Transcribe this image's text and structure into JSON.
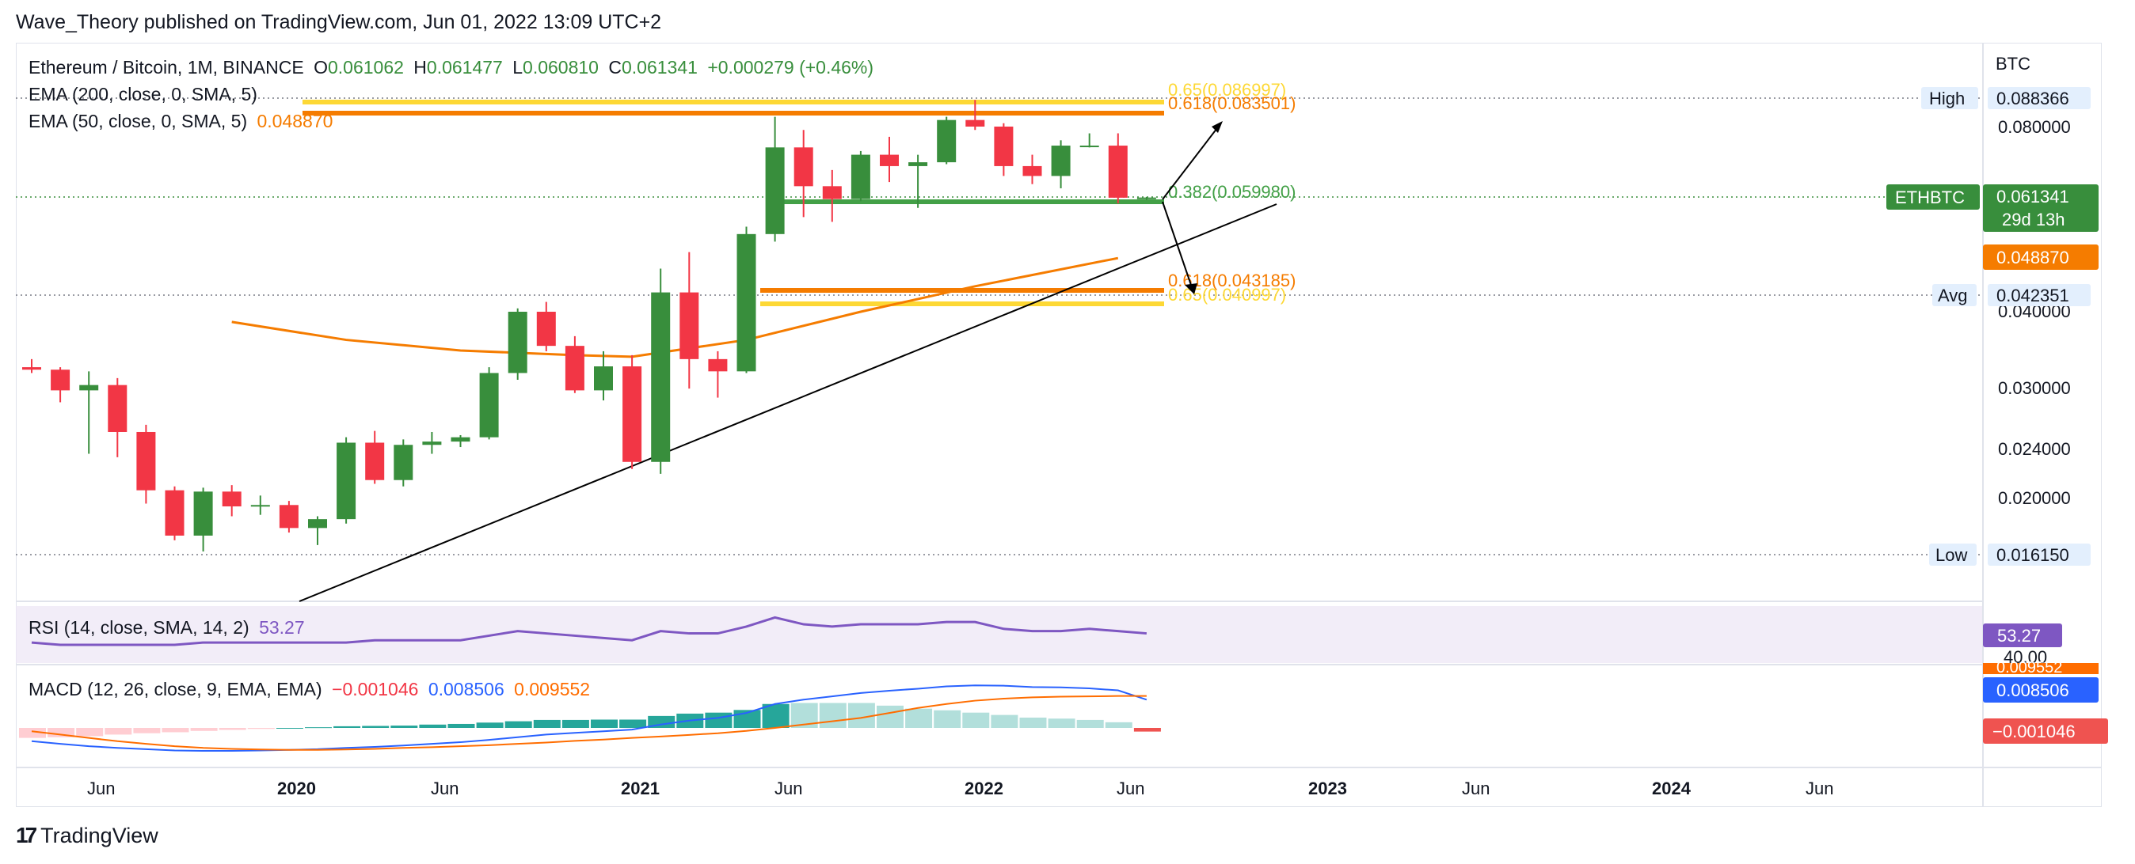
{
  "header": {
    "published": "Wave_Theory published on TradingView.com, Jun 01, 2022 13:09 UTC+2"
  },
  "legend": {
    "symbol": "Ethereum / Bitcoin, 1M, BINANCE",
    "o_label": "O",
    "o": "0.061062",
    "h_label": "H",
    "h": "0.061477",
    "l_label": "L",
    "l": "0.060810",
    "c_label": "C",
    "c": "0.061341",
    "change": "+0.000279 (+0.46%)",
    "ema200": "EMA (200, close, 0, SMA, 5)",
    "ema50": "EMA (50, close, 0, SMA, 5)",
    "ema50_value": "0.048870"
  },
  "rsi": {
    "label": "RSI (14, close, SMA, 14, 2)",
    "value": "53.27",
    "level": "40.00"
  },
  "macd": {
    "label": "MACD (12, 26, close, 9, EMA, EMA)",
    "hist": "−0.001046",
    "macd": "0.008506",
    "signal": "0.009552",
    "signal_hidden": "0.009552"
  },
  "price_axis": {
    "unit": "BTC",
    "ticks": [
      "0.080000",
      "0.040000",
      "0.030000",
      "0.024000",
      "0.020000"
    ],
    "high_label": "High",
    "high_value": "0.088366",
    "avg_label": "Avg",
    "avg_value": "0.042351",
    "low_label": "Low",
    "low_value": "0.016150",
    "symbol_tag": "ETHBTC",
    "last_price": "0.061341",
    "countdown": "29d 13h",
    "ema_tag": "0.048870"
  },
  "time_axis": [
    "Jun",
    "2020",
    "Jun",
    "2021",
    "Jun",
    "2022",
    "Jun",
    "2023",
    "Jun",
    "2024",
    "Jun"
  ],
  "fib_labels": {
    "f065_top": "0.65(0.086997)",
    "f0618_top": "0.618(0.083501)",
    "f0382": "0.382(0.059980)",
    "f0618_bot": "0.618(0.043185)",
    "f065_bot": "0.65(0.040997)"
  },
  "footer": {
    "brand": "TradingView"
  },
  "colors": {
    "up": "#388e3c",
    "down": "#f23645",
    "ema": "#f57c00",
    "fib_yellow": "#fdd835",
    "fib_orange": "#f57c00",
    "fib_green": "#43a047",
    "rsi": "#7e57c2",
    "macd": "#2962ff",
    "signal": "#ff6d00",
    "hist_pos": "#26a69a",
    "hist_neg": "#ef5350"
  },
  "chart_data": {
    "type": "candlestick",
    "timeframe": "1M",
    "candles": [
      {
        "date": "2019-04",
        "o": 0.0325,
        "h": 0.0335,
        "l": 0.0318,
        "c": 0.0322
      },
      {
        "date": "2019-05",
        "o": 0.0322,
        "h": 0.0325,
        "l": 0.0285,
        "c": 0.0298
      },
      {
        "date": "2019-06",
        "o": 0.0298,
        "h": 0.032,
        "l": 0.0235,
        "c": 0.0304
      },
      {
        "date": "2019-07",
        "o": 0.0304,
        "h": 0.0312,
        "l": 0.0232,
        "c": 0.0255
      },
      {
        "date": "2019-08",
        "o": 0.0255,
        "h": 0.0262,
        "l": 0.0195,
        "c": 0.0205
      },
      {
        "date": "2019-09",
        "o": 0.0205,
        "h": 0.0208,
        "l": 0.017,
        "c": 0.0173
      },
      {
        "date": "2019-10",
        "o": 0.0173,
        "h": 0.0207,
        "l": 0.0163,
        "c": 0.0204
      },
      {
        "date": "2019-11",
        "o": 0.0204,
        "h": 0.0209,
        "l": 0.0186,
        "c": 0.0193
      },
      {
        "date": "2019-12",
        "o": 0.0193,
        "h": 0.0201,
        "l": 0.0187,
        "c": 0.0194
      },
      {
        "date": "2020-01",
        "o": 0.0194,
        "h": 0.0197,
        "l": 0.0175,
        "c": 0.0178
      },
      {
        "date": "2020-02",
        "o": 0.0178,
        "h": 0.0186,
        "l": 0.0167,
        "c": 0.0184
      },
      {
        "date": "2020-03",
        "o": 0.0184,
        "h": 0.025,
        "l": 0.0181,
        "c": 0.0245
      },
      {
        "date": "2020-04",
        "o": 0.0245,
        "h": 0.0256,
        "l": 0.021,
        "c": 0.0213
      },
      {
        "date": "2020-05",
        "o": 0.0213,
        "h": 0.0248,
        "l": 0.0208,
        "c": 0.0243
      },
      {
        "date": "2020-06",
        "o": 0.0243,
        "h": 0.0255,
        "l": 0.0235,
        "c": 0.0246
      },
      {
        "date": "2020-07",
        "o": 0.0246,
        "h": 0.0252,
        "l": 0.0241,
        "c": 0.025
      },
      {
        "date": "2020-08",
        "o": 0.025,
        "h": 0.0325,
        "l": 0.0248,
        "c": 0.0318
      },
      {
        "date": "2020-09",
        "o": 0.0318,
        "h": 0.0405,
        "l": 0.031,
        "c": 0.04
      },
      {
        "date": "2020-10",
        "o": 0.04,
        "h": 0.0415,
        "l": 0.0345,
        "c": 0.0352
      },
      {
        "date": "2020-11",
        "o": 0.0352,
        "h": 0.0365,
        "l": 0.0295,
        "c": 0.0298
      },
      {
        "date": "2020-12",
        "o": 0.0298,
        "h": 0.0345,
        "l": 0.0287,
        "c": 0.0326
      },
      {
        "date": "2021-01",
        "o": 0.0326,
        "h": 0.034,
        "l": 0.0222,
        "c": 0.0228
      },
      {
        "date": "2021-02",
        "o": 0.0228,
        "h": 0.047,
        "l": 0.0218,
        "c": 0.043
      },
      {
        "date": "2021-03",
        "o": 0.043,
        "h": 0.05,
        "l": 0.03,
        "c": 0.0335
      },
      {
        "date": "2021-04",
        "o": 0.0335,
        "h": 0.0345,
        "l": 0.029,
        "c": 0.032
      },
      {
        "date": "2021-05",
        "o": 0.032,
        "h": 0.055,
        "l": 0.0318,
        "c": 0.0535
      },
      {
        "date": "2021-06",
        "o": 0.0535,
        "h": 0.083,
        "l": 0.052,
        "c": 0.074
      },
      {
        "date": "2021-07",
        "o": 0.074,
        "h": 0.079,
        "l": 0.057,
        "c": 0.064
      },
      {
        "date": "2021-08",
        "o": 0.064,
        "h": 0.068,
        "l": 0.056,
        "c": 0.061
      },
      {
        "date": "2021-09",
        "o": 0.061,
        "h": 0.073,
        "l": 0.0605,
        "c": 0.072
      },
      {
        "date": "2021-10",
        "o": 0.072,
        "h": 0.077,
        "l": 0.065,
        "c": 0.069
      },
      {
        "date": "2021-11",
        "o": 0.069,
        "h": 0.072,
        "l": 0.059,
        "c": 0.07
      },
      {
        "date": "2021-12",
        "o": 0.07,
        "h": 0.083,
        "l": 0.0695,
        "c": 0.082
      },
      {
        "date": "2022-01",
        "o": 0.082,
        "h": 0.0884,
        "l": 0.079,
        "c": 0.08
      },
      {
        "date": "2022-02",
        "o": 0.08,
        "h": 0.081,
        "l": 0.0665,
        "c": 0.069
      },
      {
        "date": "2022-03",
        "o": 0.069,
        "h": 0.072,
        "l": 0.0645,
        "c": 0.0665
      },
      {
        "date": "2022-04",
        "o": 0.0665,
        "h": 0.076,
        "l": 0.0635,
        "c": 0.0745
      },
      {
        "date": "2022-05",
        "o": 0.0745,
        "h": 0.078,
        "l": 0.074,
        "c": 0.0745
      },
      {
        "date": "2022-06",
        "o": 0.0745,
        "h": 0.078,
        "l": 0.06,
        "c": 0.0613
      },
      {
        "date": "2022-06-cur",
        "o": 0.061062,
        "h": 0.061477,
        "l": 0.06081,
        "c": 0.061341
      }
    ],
    "ema50": [
      {
        "date": "2019-11",
        "v": 0.0385
      },
      {
        "date": "2020-03",
        "v": 0.036
      },
      {
        "date": "2020-07",
        "v": 0.0346
      },
      {
        "date": "2020-11",
        "v": 0.034
      },
      {
        "date": "2021-01",
        "v": 0.0338
      },
      {
        "date": "2021-05",
        "v": 0.036
      },
      {
        "date": "2021-09",
        "v": 0.04
      },
      {
        "date": "2022-01",
        "v": 0.044
      },
      {
        "date": "2022-06",
        "v": 0.0489
      }
    ],
    "fib_levels": [
      {
        "ratio": "0.65",
        "value": 0.086997,
        "color": "yellow"
      },
      {
        "ratio": "0.618",
        "value": 0.083501,
        "color": "orange"
      },
      {
        "ratio": "0.382",
        "value": 0.05998,
        "color": "green"
      },
      {
        "ratio": "0.618",
        "value": 0.043185,
        "color": "orange"
      },
      {
        "ratio": "0.65",
        "value": 0.040997,
        "color": "yellow"
      }
    ],
    "high": 0.088366,
    "avg": 0.042351,
    "low": 0.01615,
    "y_scale": "log",
    "rsi_series": [
      49,
      48,
      48,
      48,
      48,
      48,
      49,
      49,
      49,
      49,
      49,
      49,
      50,
      50,
      50,
      50,
      52,
      54,
      53,
      52,
      51,
      50,
      54,
      53,
      53,
      56,
      60,
      57,
      56,
      57,
      57,
      57,
      58,
      58,
      55,
      54,
      54,
      55,
      54,
      53
    ],
    "macd_series": [
      -0.004,
      -0.0048,
      -0.0055,
      -0.006,
      -0.0064,
      -0.0068,
      -0.0069,
      -0.0069,
      -0.0068,
      -0.0066,
      -0.0064,
      -0.006,
      -0.0057,
      -0.0053,
      -0.0048,
      -0.0043,
      -0.0036,
      -0.0028,
      -0.002,
      -0.0015,
      -0.001,
      -0.0005,
      0.001,
      0.0022,
      0.003,
      0.0045,
      0.0072,
      0.0085,
      0.0095,
      0.0105,
      0.0112,
      0.0118,
      0.0125,
      0.0128,
      0.0127,
      0.0123,
      0.0122,
      0.0119,
      0.0113,
      0.0085
    ],
    "signal_series": [
      -0.001,
      -0.002,
      -0.003,
      -0.004,
      -0.0048,
      -0.0055,
      -0.006,
      -0.0063,
      -0.0065,
      -0.0066,
      -0.0066,
      -0.0065,
      -0.0063,
      -0.006,
      -0.0058,
      -0.0055,
      -0.0052,
      -0.0048,
      -0.0044,
      -0.0039,
      -0.0035,
      -0.003,
      -0.0026,
      -0.0021,
      -0.0016,
      -0.0009,
      0.0,
      0.001,
      0.002,
      0.003,
      0.0045,
      0.006,
      0.0072,
      0.0082,
      0.0088,
      0.0092,
      0.0094,
      0.0095,
      0.0096,
      0.0096
    ]
  }
}
